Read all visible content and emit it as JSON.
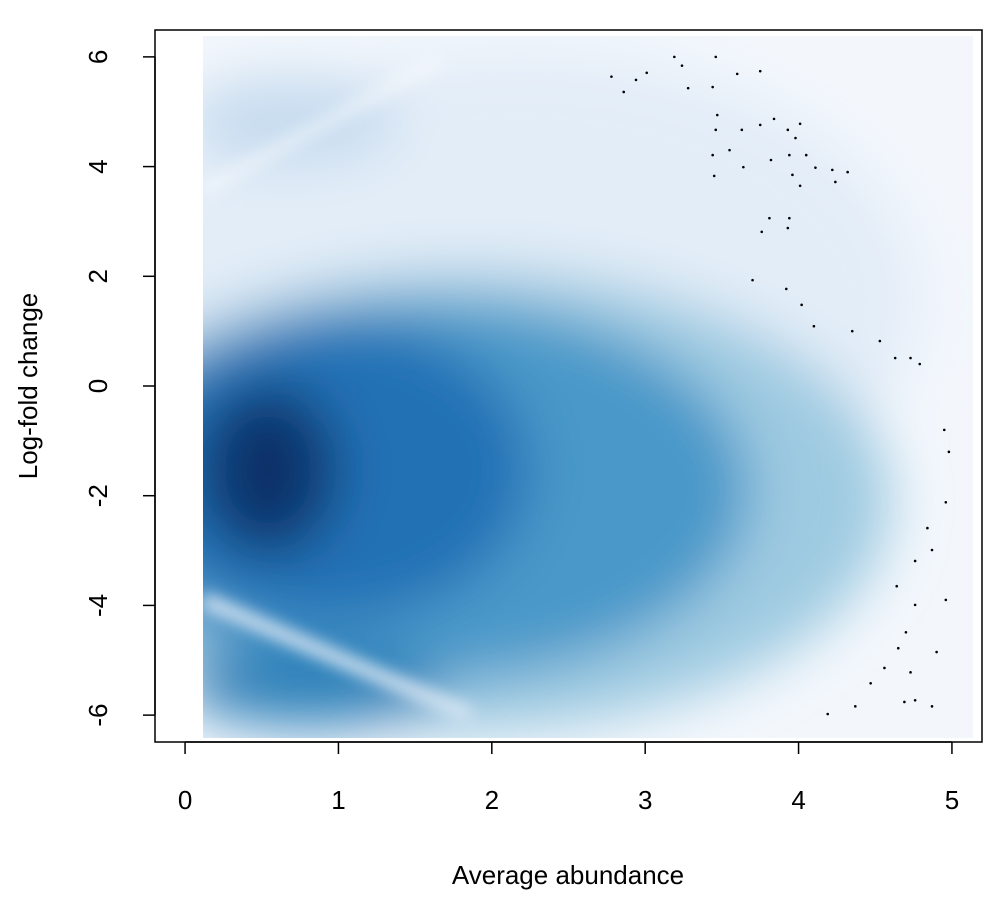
{
  "chart_data": {
    "type": "smoothscatter",
    "xlabel": "Average abundance",
    "ylabel": "Log-fold change",
    "xlim": [
      -0.196,
      5.196
    ],
    "ylim": [
      -6.49,
      6.49
    ],
    "xticks": [
      0,
      1,
      2,
      3,
      4,
      5
    ],
    "yticks": [
      -6,
      -4,
      -2,
      0,
      2,
      4,
      6
    ],
    "color": "#000000",
    "x": [
      2.78,
      2.86,
      2.94,
      3.01,
      3.19,
      3.24,
      3.28,
      3.46,
      3.6,
      3.75,
      3.44,
      3.47,
      3.46,
      3.63,
      3.75,
      3.84,
      3.93,
      4.01,
      3.98,
      3.94,
      4.05,
      4.11,
      4.22,
      4.32,
      4.24,
      3.44,
      3.45,
      3.55,
      3.64,
      3.82,
      3.96,
      4.01,
      3.81,
      3.76,
      3.94,
      3.93,
      3.7,
      3.92,
      4.02,
      4.1,
      4.35,
      4.53,
      4.63,
      4.73,
      4.79,
      4.95,
      4.98,
      4.96,
      4.84,
      4.87,
      4.76,
      4.96,
      4.64,
      4.76,
      4.7,
      4.65,
      4.9,
      4.56,
      4.47,
      4.73,
      4.76,
      4.69,
      4.87,
      4.37,
      4.19
    ],
    "y": [
      5.64,
      5.36,
      5.58,
      5.71,
      6.0,
      5.84,
      5.43,
      6.0,
      5.69,
      5.74,
      5.45,
      4.94,
      4.67,
      4.67,
      4.76,
      4.87,
      4.67,
      4.78,
      4.52,
      4.21,
      4.21,
      3.98,
      3.94,
      3.9,
      3.72,
      4.21,
      3.83,
      4.3,
      3.99,
      4.12,
      3.85,
      3.65,
      3.06,
      2.81,
      3.06,
      2.88,
      1.93,
      1.77,
      1.48,
      1.09,
      1.0,
      0.82,
      0.51,
      0.51,
      0.4,
      -0.8,
      -1.2,
      -2.12,
      -2.59,
      -2.99,
      -3.19,
      -3.9,
      -3.65,
      -3.99,
      -4.49,
      -4.78,
      -4.85,
      -5.14,
      -5.42,
      -5.22,
      -5.73,
      -5.76,
      -5.84,
      -5.84,
      -5.98
    ]
  }
}
